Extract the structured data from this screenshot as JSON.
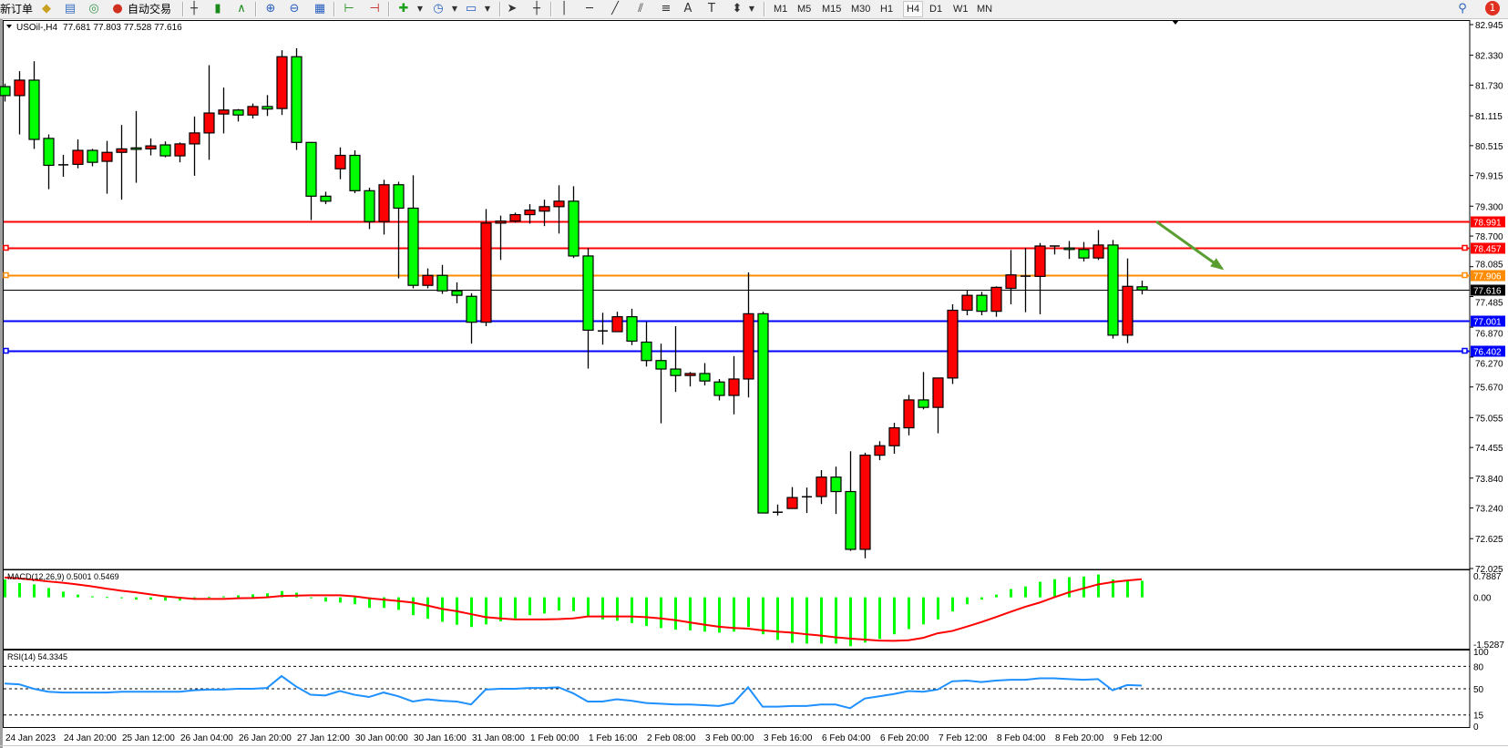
{
  "toolbar": {
    "new_order_label": "新订单",
    "auto_trade_label": "自动交易",
    "timeframes": [
      "M1",
      "M5",
      "M15",
      "M30",
      "H1",
      "H4",
      "D1",
      "W1",
      "MN"
    ],
    "active_timeframe": "H4",
    "notification_count": "1",
    "icons": [
      "market-watch-icon",
      "navigator-icon",
      "signals-icon",
      "auto-trading-icon",
      "bar-chart-icon",
      "candlestick-chart-icon",
      "line-chart-icon",
      "zoom-in-icon",
      "zoom-out-icon",
      "tile-windows-icon",
      "auto-scroll-icon",
      "chart-shift-icon",
      "indicators-icon",
      "periods-icon",
      "templates-icon",
      "cursor-icon",
      "crosshair-icon",
      "vertical-line-icon",
      "horizontal-line-icon",
      "trendline-icon",
      "equidistant-channel-icon",
      "fibonacci-icon",
      "text-icon",
      "text-label-icon",
      "arrows-icon",
      "search-icon",
      "notification-icon"
    ]
  },
  "chart": {
    "symbol": "USOil-,H4",
    "ohlc": "77.681 77.803 77.528 77.616"
  },
  "colors": {
    "bull_candle": "#ff0000",
    "bear_candle": "#00ff00",
    "macd_histogram": "#00ff00",
    "macd_signal": "#ff0000",
    "rsi_line": "#1e90ff",
    "arrow": "#5a9e32"
  },
  "chart_data": [
    {
      "type": "candlestick",
      "title": "USOil-,H4 77.681 77.803 77.528 77.616",
      "ylim": [
        72.025,
        82.945
      ],
      "grid": false,
      "price_ticks": [
        "82.945",
        "82.330",
        "81.730",
        "81.115",
        "80.515",
        "79.915",
        "79.300",
        "78.700",
        "78.085",
        "77.485",
        "76.870",
        "76.270",
        "75.670",
        "75.055",
        "74.455",
        "73.840",
        "73.240",
        "72.625",
        "72.025"
      ],
      "time_labels": [
        {
          "bar": 0,
          "label": "24 Jan 2023"
        },
        {
          "bar": 4,
          "label": "24 Jan 20:00"
        },
        {
          "bar": 8,
          "label": "25 Jan 12:00"
        },
        {
          "bar": 12,
          "label": "26 Jan 04:00"
        },
        {
          "bar": 16,
          "label": "26 Jan 20:00"
        },
        {
          "bar": 20,
          "label": "27 Jan 12:00"
        },
        {
          "bar": 24,
          "label": "30 Jan 00:00"
        },
        {
          "bar": 28,
          "label": "30 Jan 16:00"
        },
        {
          "bar": 32,
          "label": "31 Jan 08:00"
        },
        {
          "bar": 36,
          "label": "1 Feb 00:00"
        },
        {
          "bar": 40,
          "label": "1 Feb 16:00"
        },
        {
          "bar": 44,
          "label": "2 Feb 08:00"
        },
        {
          "bar": 48,
          "label": "3 Feb 00:00"
        },
        {
          "bar": 52,
          "label": "3 Feb 16:00"
        },
        {
          "bar": 56,
          "label": "6 Feb 04:00"
        },
        {
          "bar": 60,
          "label": "6 Feb 20:00"
        },
        {
          "bar": 64,
          "label": "7 Feb 12:00"
        },
        {
          "bar": 68,
          "label": "8 Feb 04:00"
        },
        {
          "bar": 72,
          "label": "8 Feb 20:00"
        },
        {
          "bar": 76,
          "label": "9 Feb 12:00"
        }
      ],
      "ohlc_fields": [
        "open",
        "high",
        "low",
        "close"
      ],
      "candles": [
        [
          81.7,
          81.76,
          81.4,
          81.52
        ],
        [
          81.52,
          82.01,
          80.74,
          81.83
        ],
        [
          81.83,
          82.21,
          80.45,
          80.64
        ],
        [
          80.66,
          80.74,
          79.64,
          80.12
        ],
        [
          80.13,
          80.33,
          79.89,
          80.13
        ],
        [
          80.14,
          80.64,
          80.06,
          80.42
        ],
        [
          80.42,
          80.45,
          80.1,
          80.18
        ],
        [
          80.2,
          80.61,
          79.55,
          80.38
        ],
        [
          80.38,
          80.93,
          79.43,
          80.45
        ],
        [
          80.47,
          81.21,
          79.77,
          80.44
        ],
        [
          80.45,
          80.66,
          80.32,
          80.51
        ],
        [
          80.53,
          80.6,
          80.28,
          80.31
        ],
        [
          80.31,
          80.58,
          80.18,
          80.55
        ],
        [
          80.55,
          81.1,
          79.91,
          80.77
        ],
        [
          80.77,
          82.13,
          80.23,
          81.17
        ],
        [
          81.15,
          81.68,
          80.76,
          81.23
        ],
        [
          81.23,
          81.25,
          81.0,
          81.13
        ],
        [
          81.13,
          81.36,
          81.06,
          81.3
        ],
        [
          81.3,
          81.53,
          81.11,
          81.25
        ],
        [
          81.26,
          82.43,
          81.13,
          82.3
        ],
        [
          82.3,
          82.47,
          80.43,
          80.58
        ],
        [
          80.58,
          80.58,
          79.02,
          79.5
        ],
        [
          79.5,
          79.59,
          79.34,
          79.4
        ],
        [
          80.05,
          80.48,
          79.84,
          80.32
        ],
        [
          80.32,
          80.42,
          79.56,
          79.61
        ],
        [
          79.61,
          79.67,
          78.84,
          78.99
        ],
        [
          78.99,
          79.83,
          78.73,
          79.73
        ],
        [
          79.73,
          79.79,
          77.85,
          79.26
        ],
        [
          79.26,
          79.92,
          77.65,
          77.71
        ],
        [
          77.71,
          78.05,
          77.65,
          77.91
        ],
        [
          77.91,
          78.12,
          77.54,
          77.6
        ],
        [
          77.6,
          77.77,
          77.35,
          77.51
        ],
        [
          77.49,
          77.55,
          76.54,
          76.97
        ],
        [
          76.97,
          79.24,
          76.89,
          78.96
        ],
        [
          78.96,
          79.11,
          78.22,
          79.0
        ],
        [
          79.0,
          79.17,
          78.97,
          79.13
        ],
        [
          79.13,
          79.34,
          78.95,
          79.22
        ],
        [
          79.2,
          79.43,
          78.9,
          79.29
        ],
        [
          79.29,
          79.72,
          78.75,
          79.4
        ],
        [
          79.4,
          79.7,
          78.26,
          78.3
        ],
        [
          78.3,
          78.46,
          76.04,
          76.81
        ],
        [
          76.79,
          77.16,
          76.52,
          76.8
        ],
        [
          76.78,
          77.18,
          76.78,
          77.08
        ],
        [
          77.08,
          77.24,
          76.51,
          76.59
        ],
        [
          76.57,
          76.98,
          76.08,
          76.2
        ],
        [
          76.2,
          76.54,
          74.94,
          76.03
        ],
        [
          76.03,
          76.89,
          75.57,
          75.9
        ],
        [
          75.9,
          75.97,
          75.68,
          75.94
        ],
        [
          75.94,
          76.15,
          75.7,
          75.79
        ],
        [
          75.77,
          75.83,
          75.4,
          75.5
        ],
        [
          75.5,
          76.29,
          75.12,
          75.83
        ],
        [
          75.83,
          77.97,
          75.46,
          77.14
        ],
        [
          77.14,
          77.18,
          73.14,
          73.14
        ],
        [
          73.15,
          73.31,
          73.09,
          73.16
        ],
        [
          73.23,
          73.66,
          73.23,
          73.45
        ],
        [
          73.46,
          73.65,
          73.14,
          73.47
        ],
        [
          73.47,
          74.0,
          73.32,
          73.86
        ],
        [
          73.86,
          74.07,
          73.12,
          73.57
        ],
        [
          73.57,
          74.38,
          72.38,
          72.41
        ],
        [
          72.41,
          74.35,
          72.23,
          74.3
        ],
        [
          74.3,
          74.58,
          74.2,
          74.49
        ],
        [
          74.49,
          74.95,
          74.33,
          74.85
        ],
        [
          74.85,
          75.51,
          74.7,
          75.41
        ],
        [
          75.41,
          75.97,
          75.22,
          75.26
        ],
        [
          75.26,
          75.85,
          74.74,
          75.85
        ],
        [
          75.85,
          77.33,
          75.73,
          77.21
        ],
        [
          77.21,
          77.61,
          77.11,
          77.51
        ],
        [
          77.51,
          77.58,
          77.11,
          77.19
        ],
        [
          77.19,
          77.69,
          77.08,
          77.67
        ],
        [
          77.65,
          78.42,
          77.33,
          77.92
        ],
        [
          77.9,
          78.46,
          77.17,
          77.89
        ],
        [
          77.89,
          78.56,
          77.13,
          78.5
        ],
        [
          78.5,
          78.51,
          78.33,
          78.5
        ],
        [
          78.46,
          78.6,
          78.24,
          78.43
        ],
        [
          78.43,
          78.58,
          78.19,
          78.26
        ],
        [
          78.26,
          78.82,
          78.22,
          78.52
        ],
        [
          78.52,
          78.62,
          76.64,
          76.71
        ],
        [
          76.71,
          78.25,
          76.55,
          77.69
        ],
        [
          77.681,
          77.803,
          77.528,
          77.616
        ]
      ],
      "horizontal_lines": [
        {
          "price": "78.991",
          "color": "#ff0000",
          "handle": false
        },
        {
          "price": "78.457",
          "color": "#ff0000",
          "handle": true
        },
        {
          "price": "77.906",
          "color": "#ff8c00",
          "handle": true
        },
        {
          "price": "77.001",
          "color": "#0000ff",
          "handle": false
        },
        {
          "price": "76.402",
          "color": "#0000ff",
          "handle": true
        }
      ],
      "bid_line": {
        "price": "77.616",
        "color": "#000000"
      },
      "arrow_annotation": {
        "from": {
          "bar": 79,
          "price": 78.99
        },
        "to": {
          "bar": 84,
          "price": 78.05
        },
        "direction": "down"
      }
    },
    {
      "type": "bar",
      "title": "MACD(12,26,9) 0.5001 0.5469",
      "ylim": [
        -1.5287,
        0.7887
      ],
      "ticks": [
        "0.7887",
        "0.00",
        "-1.5287"
      ],
      "histogram": [
        0.54,
        0.43,
        0.39,
        0.28,
        0.17,
        0.08,
        0.03,
        0.01,
        -0.01,
        -0.07,
        -0.07,
        -0.1,
        -0.1,
        -0.02,
        0.01,
        0.03,
        0.06,
        0.09,
        0.12,
        0.19,
        0.14,
        -0.01,
        -0.13,
        -0.16,
        -0.21,
        -0.32,
        -0.32,
        -0.38,
        -0.54,
        -0.65,
        -0.74,
        -0.83,
        -0.9,
        -0.82,
        -0.73,
        -0.64,
        -0.54,
        -0.49,
        -0.4,
        -0.42,
        -0.56,
        -0.67,
        -0.71,
        -0.78,
        -0.87,
        -0.93,
        -0.98,
        -1.0,
        -1.04,
        -1.07,
        -1.04,
        -0.9,
        -1.12,
        -1.29,
        -1.38,
        -1.4,
        -1.4,
        -1.4,
        -1.48,
        -1.37,
        -1.26,
        -1.12,
        -0.96,
        -0.82,
        -0.67,
        -0.43,
        -0.21,
        -0.07,
        0.08,
        0.25,
        0.33,
        0.47,
        0.55,
        0.61,
        0.63,
        0.69,
        0.54,
        0.49,
        0.5001
      ],
      "signal": [
        0.6,
        0.57,
        0.53,
        0.48,
        0.44,
        0.39,
        0.33,
        0.26,
        0.2,
        0.15,
        0.09,
        0.03,
        -0.01,
        -0.05,
        -0.05,
        -0.05,
        -0.03,
        -0.02,
        0.0,
        0.04,
        0.05,
        0.06,
        0.06,
        0.06,
        0.03,
        -0.03,
        -0.07,
        -0.11,
        -0.16,
        -0.25,
        -0.35,
        -0.42,
        -0.51,
        -0.6,
        -0.64,
        -0.67,
        -0.67,
        -0.67,
        -0.66,
        -0.64,
        -0.58,
        -0.58,
        -0.58,
        -0.58,
        -0.6,
        -0.64,
        -0.69,
        -0.76,
        -0.83,
        -0.89,
        -0.93,
        -0.95,
        -1.0,
        -1.04,
        -1.07,
        -1.12,
        -1.16,
        -1.21,
        -1.25,
        -1.28,
        -1.31,
        -1.32,
        -1.3,
        -1.23,
        -1.09,
        -1.02,
        -0.89,
        -0.75,
        -0.6,
        -0.44,
        -0.29,
        -0.16,
        0.0,
        0.15,
        0.27,
        0.39,
        0.46,
        0.51,
        0.5469
      ]
    },
    {
      "type": "line",
      "title": "RSI(14) 54.3345",
      "ylim": [
        0,
        100
      ],
      "ticks": [
        "100",
        "80",
        "50",
        "15",
        "0"
      ],
      "levels": [
        80,
        50,
        15
      ],
      "values": [
        57,
        56,
        50,
        46,
        45,
        45,
        45,
        45,
        46,
        46,
        46,
        46,
        46,
        48,
        49,
        49,
        50,
        50,
        51,
        67,
        53,
        42,
        41,
        47,
        42,
        39,
        45,
        40,
        33,
        36,
        34,
        33,
        29,
        49,
        50,
        50,
        51,
        51,
        52,
        44,
        33,
        33,
        36,
        34,
        31,
        30,
        29,
        29,
        28,
        27,
        31,
        52,
        26,
        26,
        27,
        27,
        29,
        29,
        24,
        37,
        40,
        43,
        47,
        46,
        49,
        60,
        61,
        59,
        61,
        62,
        62,
        64,
        64,
        63,
        62,
        63,
        48,
        55,
        54.3345
      ]
    }
  ]
}
